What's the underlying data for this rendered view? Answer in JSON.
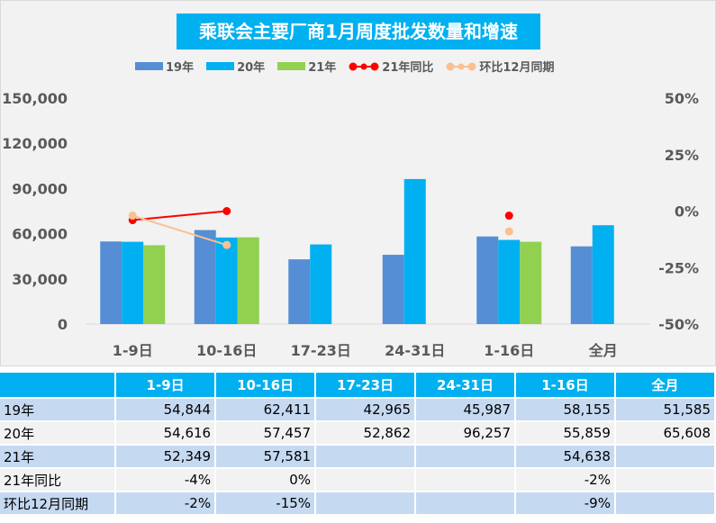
{
  "chart_data": {
    "type": "bar",
    "title": "乘联会主要厂商1月周度批发数量和增速",
    "categories": [
      "1-9日",
      "10-16日",
      "17-23日",
      "24-31日",
      "1-16日",
      "全月"
    ],
    "series": [
      {
        "name": "19年",
        "type": "bar",
        "color": "#558ed5",
        "values": [
          54844,
          62411,
          42965,
          45987,
          58155,
          51585
        ]
      },
      {
        "name": "20年",
        "type": "bar",
        "color": "#00b0f0",
        "values": [
          54616,
          57457,
          52862,
          96257,
          55859,
          65608
        ]
      },
      {
        "name": "21年",
        "type": "bar",
        "color": "#92d050",
        "values": [
          52349,
          57581,
          null,
          null,
          54638,
          null
        ]
      },
      {
        "name": "21年同比",
        "type": "line",
        "axis": "right",
        "color": "#ff0000",
        "values": [
          -4,
          0,
          null,
          null,
          -2,
          null
        ]
      },
      {
        "name": "环比12月同期",
        "type": "line",
        "axis": "right",
        "color": "#fac090",
        "values": [
          -2,
          -15,
          null,
          null,
          -9,
          null
        ]
      }
    ],
    "ylim": [
      0,
      150000
    ],
    "yticks": [
      "0",
      "30,000",
      "60,000",
      "90,000",
      "120,000",
      "150,000"
    ],
    "y2lim": [
      -50,
      50
    ],
    "y2ticks": [
      "-50%",
      "-25%",
      "0%",
      "25%",
      "50%"
    ],
    "legend": "top"
  },
  "table": {
    "header": [
      "",
      "1-9日",
      "10-16日",
      "17-23日",
      "24-31日",
      "1-16日",
      "全月"
    ],
    "rows": [
      [
        "19年",
        "54,844",
        "62,411",
        "42,965",
        "45,987",
        "58,155",
        "51,585"
      ],
      [
        "20年",
        "54,616",
        "57,457",
        "52,862",
        "96,257",
        "55,859",
        "65,608"
      ],
      [
        "21年",
        "52,349",
        "57,581",
        "",
        "",
        "54,638",
        ""
      ],
      [
        "21年同比",
        "-4%",
        "0%",
        "",
        "",
        "-2%",
        ""
      ],
      [
        "环比12月同期",
        "-2%",
        "-15%",
        "",
        "",
        "-9%",
        ""
      ]
    ]
  }
}
